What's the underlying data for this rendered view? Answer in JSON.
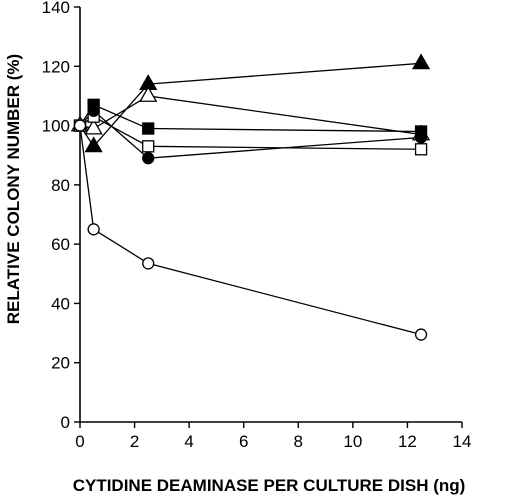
{
  "chart_data": {
    "type": "line",
    "xlabel": "CYTIDINE DEAMINASE PER CULTURE DISH (ng)",
    "ylabel": "RELATIVE COLONY NUMBER (%)",
    "xlim": [
      0,
      14
    ],
    "ylim": [
      0,
      140
    ],
    "xticks": [
      "0",
      "2",
      "4",
      "6",
      "8",
      "10",
      "12",
      "14"
    ],
    "yticks": [
      "0",
      "20",
      "40",
      "60",
      "80",
      "100",
      "120",
      "140"
    ],
    "grid": false,
    "series": [
      {
        "marker": "filled-triangle",
        "x": [
          0,
          0.5,
          2.5,
          12.5
        ],
        "y": [
          100,
          93,
          114,
          121
        ]
      },
      {
        "marker": "open-triangle",
        "x": [
          0,
          0.5,
          2.5,
          12.5
        ],
        "y": [
          100,
          99,
          110,
          97
        ]
      },
      {
        "marker": "filled-square",
        "x": [
          0,
          0.5,
          2.5,
          12.5
        ],
        "y": [
          100,
          107,
          99,
          98
        ]
      },
      {
        "marker": "open-square",
        "x": [
          0,
          0.5,
          2.5,
          12.5
        ],
        "y": [
          100,
          103,
          93,
          92
        ]
      },
      {
        "marker": "filled-circle",
        "x": [
          0,
          0.5,
          2.5,
          12.5
        ],
        "y": [
          100,
          105,
          89,
          96
        ]
      },
      {
        "marker": "open-circle",
        "x": [
          0,
          0.5,
          2.5,
          12.5
        ],
        "y": [
          100,
          65,
          53.5,
          29.5
        ]
      }
    ]
  }
}
